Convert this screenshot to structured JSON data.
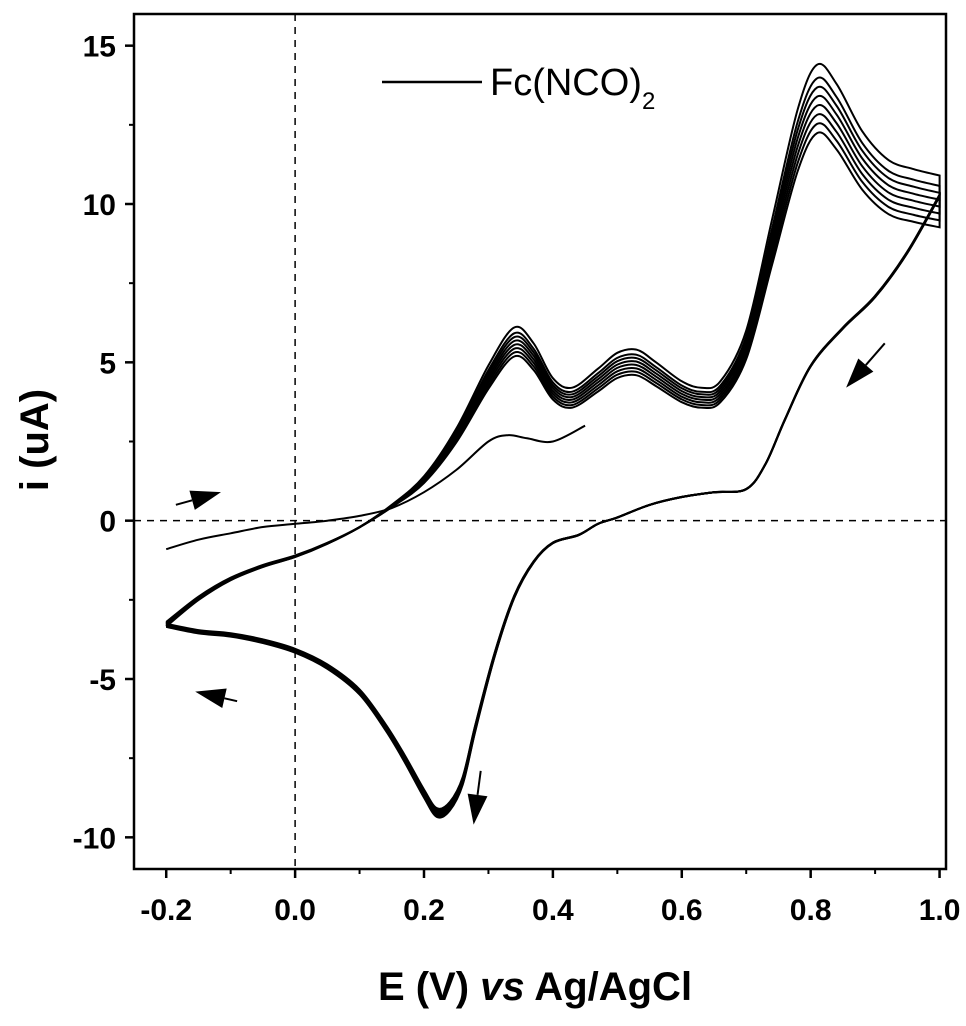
{
  "chart_data": {
    "type": "line",
    "xlabel_prefix": "E (V) ",
    "xlabel_italic": "vs",
    "xlabel_suffix": " Ag/AgCl",
    "ylabel": "i (uA)",
    "xlim": [
      -0.25,
      1.01
    ],
    "ylim": [
      -11,
      16
    ],
    "xticks": [
      -0.2,
      0.0,
      0.2,
      0.4,
      0.6,
      0.8,
      1.0
    ],
    "xtick_labels": [
      "-0.2",
      "0.0",
      "0.2",
      "0.4",
      "0.6",
      "0.8",
      "1.0"
    ],
    "yticks": [
      -10,
      -5,
      0,
      5,
      10,
      15
    ],
    "ytick_labels": [
      "-10",
      "-5",
      "0",
      "5",
      "10",
      "15"
    ],
    "grid": false,
    "reference_lines": {
      "x": 0.0,
      "y": 0.0,
      "style": "dashed"
    },
    "legend": {
      "position": "top-center",
      "label_main": "Fc(NCO)",
      "label_sub": "2"
    },
    "line_color": "#000000",
    "first_forward_scan": {
      "x": [
        -0.2,
        -0.15,
        -0.1,
        -0.05,
        0.0,
        0.05,
        0.1,
        0.15,
        0.2,
        0.25,
        0.3,
        0.33,
        0.36,
        0.4,
        0.45
      ],
      "y": [
        -0.9,
        -0.6,
        -0.4,
        -0.2,
        -0.1,
        0.0,
        0.15,
        0.4,
        0.9,
        1.6,
        2.5,
        2.7,
        2.6,
        2.5,
        3.0
      ]
    },
    "series": [
      {
        "scale": 1.0
      },
      {
        "scale": 0.97
      },
      {
        "scale": 0.95
      },
      {
        "scale": 0.93
      },
      {
        "scale": 0.91
      },
      {
        "scale": 0.89
      },
      {
        "scale": 0.87
      },
      {
        "scale": 0.85
      }
    ],
    "cycle_forward": {
      "x": [
        -0.2,
        -0.15,
        -0.1,
        -0.05,
        0.0,
        0.05,
        0.1,
        0.15,
        0.2,
        0.25,
        0.3,
        0.34,
        0.37,
        0.4,
        0.43,
        0.47,
        0.5,
        0.53,
        0.56,
        0.6,
        0.63,
        0.66,
        0.7,
        0.74,
        0.78,
        0.81,
        0.84,
        0.88,
        0.92,
        0.96,
        1.0
      ],
      "y": [
        -3.2,
        -2.4,
        -1.8,
        -1.4,
        -1.1,
        -0.7,
        -0.2,
        0.5,
        1.4,
        2.9,
        4.9,
        6.1,
        5.6,
        4.5,
        4.2,
        4.8,
        5.3,
        5.4,
        5.0,
        4.4,
        4.2,
        4.4,
        6.0,
        9.5,
        13.0,
        14.4,
        13.8,
        12.3,
        11.4,
        11.1,
        10.9
      ]
    },
    "cycle_reverse": {
      "x": [
        1.0,
        0.95,
        0.9,
        0.85,
        0.8,
        0.76,
        0.73,
        0.7,
        0.65,
        0.6,
        0.55,
        0.5,
        0.47,
        0.44,
        0.4,
        0.37,
        0.34,
        0.31,
        0.28,
        0.26,
        0.24,
        0.22,
        0.2,
        0.17,
        0.14,
        0.1,
        0.05,
        0.0,
        -0.05,
        -0.1,
        -0.15,
        -0.2
      ],
      "y": [
        10.3,
        8.5,
        7.1,
        6.1,
        4.9,
        3.2,
        1.8,
        1.0,
        0.9,
        0.75,
        0.5,
        0.1,
        -0.1,
        -0.45,
        -0.7,
        -1.3,
        -2.4,
        -4.2,
        -6.5,
        -8.2,
        -9.0,
        -9.2,
        -8.6,
        -7.5,
        -6.5,
        -5.4,
        -4.6,
        -4.1,
        -3.8,
        -3.6,
        -3.5,
        -3.3
      ]
    },
    "arrows": [
      {
        "x1": -0.185,
        "y1": 0.5,
        "x2": -0.115,
        "y2": 0.9
      },
      {
        "x1": 0.915,
        "y1": 5.6,
        "x2": 0.855,
        "y2": 4.2
      },
      {
        "x1": 0.288,
        "y1": -7.9,
        "x2": 0.277,
        "y2": -9.6
      },
      {
        "x1": -0.09,
        "y1": -5.7,
        "x2": -0.155,
        "y2": -5.4
      }
    ]
  }
}
